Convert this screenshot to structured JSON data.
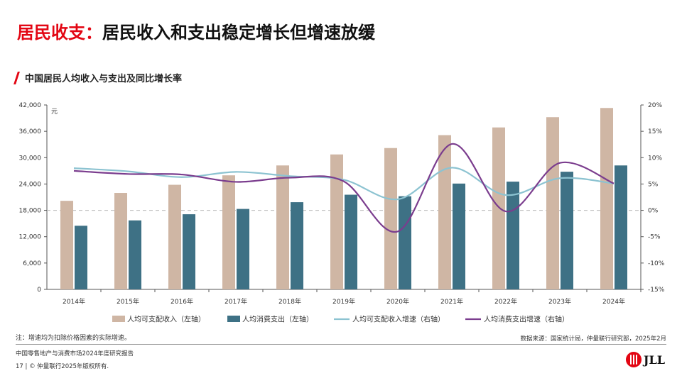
{
  "header": {
    "title_accent": "居民收支：",
    "title_rest": "居民收入和支出稳定增长但增速放缓",
    "subtitle": "中国居民人均收入与支出及同比增长率"
  },
  "footer": {
    "note": "注：增速均为扣除价格因素的实际增速。",
    "source": "数据来源：国家统计局，仲量联行研究部，2025年2月",
    "report": "中国零售地产与消费市场2024年度研究报告",
    "copyright": "17  |  © 仲量联行2025年版权所有.",
    "logo_text": "JLL"
  },
  "colors": {
    "accent": "#e30613",
    "income_bar": "#cfb6a4",
    "spend_bar": "#3e7185",
    "income_growth": "#8cc3d1",
    "spend_growth": "#7b3d8e"
  },
  "chart_data": {
    "type": "bar",
    "unit_label": "元",
    "categories": [
      "2014年",
      "2015年",
      "2016年",
      "2017年",
      "2018年",
      "2019年",
      "2020年",
      "2021年",
      "2022年",
      "2023年",
      "2024年"
    ],
    "y_left": {
      "min": 0,
      "max": 42000,
      "ticks": [
        "0",
        "6,000",
        "12,000",
        "18,000",
        "24,000",
        "30,000",
        "36,000",
        "42,000"
      ]
    },
    "y_right": {
      "min": -15,
      "max": 20,
      "ticks": [
        "-15%",
        "-10%",
        "-5%",
        "0%",
        "5%",
        "10%",
        "15%",
        "20%"
      ]
    },
    "series": [
      {
        "name": "人均可支配收入（左轴）",
        "type": "bar",
        "axis": "left",
        "values": [
          20167,
          21966,
          23821,
          25974,
          28228,
          30733,
          32189,
          35128,
          36883,
          39218,
          41314
        ]
      },
      {
        "name": "人均消费支出（左轴）",
        "type": "bar",
        "axis": "left",
        "values": [
          14491,
          15712,
          17111,
          18322,
          19853,
          21559,
          21210,
          24100,
          24538,
          26796,
          28227
        ]
      },
      {
        "name": "人均可支配收入增速（右轴）",
        "type": "line",
        "axis": "right",
        "values": [
          8.0,
          7.4,
          6.3,
          7.3,
          6.5,
          5.8,
          2.1,
          8.1,
          2.9,
          6.1,
          5.1
        ]
      },
      {
        "name": "人均消费支出增速（右轴）",
        "type": "line",
        "axis": "right",
        "values": [
          7.5,
          6.9,
          6.8,
          5.4,
          6.2,
          5.5,
          -4.0,
          12.6,
          -0.2,
          9.0,
          5.1
        ]
      }
    ],
    "legend_position": "bottom",
    "zero_line": "dashed"
  }
}
